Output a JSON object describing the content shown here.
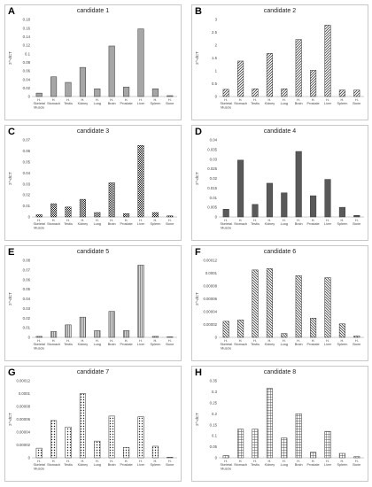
{
  "chart_data": [
    {
      "panel_label": "A",
      "type": "bar",
      "title": "candidate 1",
      "ylabel": "2^-dCT",
      "ylim": [
        0,
        0.18
      ],
      "yticks": [
        "0",
        "0.02",
        "0.04",
        "0.06",
        "0.08",
        "0.1",
        "0.12",
        "0.14",
        "0.16",
        "0.18"
      ],
      "categories": [
        "H. Skeletal Muscle",
        "H. Stomach",
        "H. Testis",
        "H. Kidney",
        "H. Lung",
        "H. Brain",
        "H. Prostate",
        "H. Liver",
        "H. Spleen",
        "H. Bone"
      ],
      "values": [
        0.008,
        0.046,
        0.033,
        0.068,
        0.018,
        0.118,
        0.022,
        0.158,
        0.018,
        0.002
      ],
      "color": "#a6a6a6",
      "pattern": "solid"
    },
    {
      "panel_label": "B",
      "type": "bar",
      "title": "candidate 2",
      "ylabel": "2^-dCT",
      "ylim": [
        0,
        3
      ],
      "yticks": [
        "0",
        "0.5",
        "1",
        "1.5",
        "2",
        "2.5",
        "3"
      ],
      "categories": [
        "H. Skeletal Muscle",
        "H. Stomach",
        "H. Testis",
        "H. Kidney",
        "H. Lung",
        "H. Brain",
        "H. Prostate",
        "H. Liver",
        "H. Spleen",
        "H. Bone"
      ],
      "values": [
        0.28,
        1.38,
        0.3,
        1.68,
        0.3,
        2.22,
        1.02,
        2.78,
        0.25,
        0.25
      ],
      "color": "#ffffff",
      "pattern": "diag-right"
    },
    {
      "panel_label": "C",
      "type": "bar",
      "title": "candidate 3",
      "ylabel": "2^-dCT",
      "ylim": [
        0,
        0.07
      ],
      "yticks": [
        "0",
        "0.01",
        "0.02",
        "0.03",
        "0.04",
        "0.05",
        "0.06",
        "0.07"
      ],
      "categories": [
        "H. Skeletal Muscle",
        "H. Stomach",
        "H. Testis",
        "H. Kidney",
        "H. Lung",
        "H. Brain",
        "H. Prostate",
        "H. Liver",
        "H. Spleen",
        "H. Bone"
      ],
      "values": [
        0.002,
        0.012,
        0.009,
        0.016,
        0.004,
        0.031,
        0.003,
        0.065,
        0.004,
        0.001
      ],
      "color": "#ffffff",
      "pattern": "checker"
    },
    {
      "panel_label": "D",
      "type": "bar",
      "title": "candidate 4",
      "ylabel": "2^-dCT",
      "ylim": [
        0,
        0.04
      ],
      "yticks": [
        "0",
        "0.005",
        "0.01",
        "0.015",
        "0.02",
        "0.025",
        "0.03",
        "0.035",
        "0.04"
      ],
      "categories": [
        "H. Skeletal Muscle",
        "H. Stomach",
        "H. Testis",
        "H. Kidney",
        "H. Lung",
        "H. Brain",
        "H. Prostate",
        "H. Liver",
        "H. Spleen",
        "H. Bone"
      ],
      "values": [
        0.004,
        0.0295,
        0.0065,
        0.0175,
        0.0125,
        0.034,
        0.011,
        0.0195,
        0.005,
        0.0008
      ],
      "color": "#595959",
      "pattern": "solid"
    },
    {
      "panel_label": "E",
      "type": "bar",
      "title": "candidate 5",
      "ylabel": "2^-dCT",
      "ylim": [
        0,
        0.08
      ],
      "yticks": [
        "0",
        "0.01",
        "0.02",
        "0.03",
        "0.04",
        "0.05",
        "0.06",
        "0.07",
        "0.08"
      ],
      "categories": [
        "H. Skeletal Muscle",
        "H. Stomach",
        "H. Testis",
        "H. Kidney",
        "H. Lung",
        "H. Brain",
        "H. Prostate",
        "H. Liver",
        "H. Spleen",
        "H. Bone"
      ],
      "values": [
        0.001,
        0.006,
        0.013,
        0.021,
        0.007,
        0.027,
        0.007,
        0.075,
        0.001,
        0.0005
      ],
      "color": "#d9d9d9",
      "pattern": "vlines"
    },
    {
      "panel_label": "F",
      "type": "bar",
      "title": "candidate 6",
      "ylabel": "2^-dCT",
      "ylim": [
        0,
        0.00012
      ],
      "yticks": [
        "0",
        "0.00002",
        "0.00004",
        "0.00006",
        "0.00008",
        "0.0001",
        "0.00012"
      ],
      "categories": [
        "H. Skeletal Muscle",
        "H. Stomach",
        "H. Testis",
        "H. Kidney",
        "H. Lung",
        "H. Brain",
        "H. Prostate",
        "H. Liver",
        "H. Spleen",
        "H. Bone"
      ],
      "values": [
        2.5e-05,
        2.7e-05,
        0.000105,
        0.000107,
        6e-06,
        9.6e-05,
        3e-05,
        9.3e-05,
        2.1e-05,
        2e-06
      ],
      "color": "#ffffff",
      "pattern": "diag-left"
    },
    {
      "panel_label": "G",
      "type": "bar",
      "title": "candidate 7",
      "ylabel": "2^-dCT",
      "ylim": [
        0,
        0.00012
      ],
      "yticks": [
        "0",
        "0.00002",
        "0.00004",
        "0.00006",
        "0.00008",
        "0.0001",
        "0.00012"
      ],
      "categories": [
        "H. Skeletal Muscle",
        "H. Stomach",
        "H. Testis",
        "H. Kidney",
        "H. Lung",
        "H. Brain",
        "H. Prostate",
        "H. Liver",
        "H. Spleen",
        "H. Bone"
      ],
      "values": [
        1.5e-05,
        5.8e-05,
        4.8e-05,
        0.0001,
        2.6e-05,
        6.5e-05,
        1.6e-05,
        6.4e-05,
        1.8e-05,
        1e-06
      ],
      "color": "#ffffff",
      "pattern": "dots"
    },
    {
      "panel_label": "H",
      "type": "bar",
      "title": "candidate 8",
      "ylabel": "2^-dCT",
      "ylim": [
        0,
        0.35
      ],
      "yticks": [
        "0",
        "0.05",
        "0.1",
        "0.15",
        "0.2",
        "0.25",
        "0.3",
        "0.35"
      ],
      "categories": [
        "H. Skeletal Muscle",
        "H. Stomach",
        "H. Testis",
        "H. Kidney",
        "H. Lung",
        "H. Brain",
        "H. Prostate",
        "H. Liver",
        "H. Spleen",
        "H. Bone"
      ],
      "values": [
        0.01,
        0.13,
        0.13,
        0.315,
        0.09,
        0.2,
        0.025,
        0.12,
        0.02,
        0.005
      ],
      "color": "#ffffff",
      "pattern": "grid"
    }
  ]
}
